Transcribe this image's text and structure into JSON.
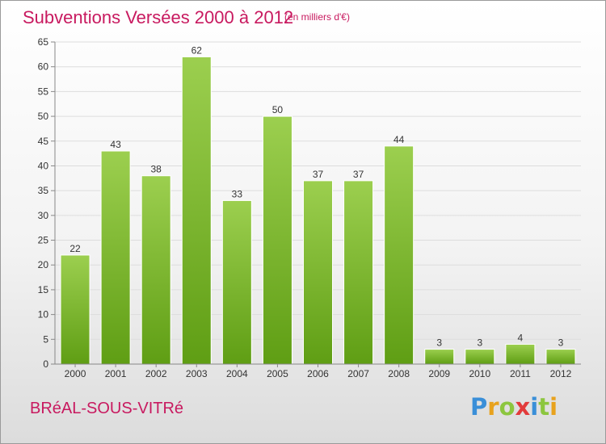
{
  "title": "Subventions Versées 2000 à 2012",
  "subtitle": "(en milliers d'€)",
  "town": "BRéAL-SOUS-VITRé",
  "brand": {
    "letters": [
      {
        "char": "P",
        "color": "#3a8fd8"
      },
      {
        "char": "r",
        "color": "#e8a21d"
      },
      {
        "char": "o",
        "color": "#8cc63f"
      },
      {
        "char": "x",
        "color": "#e23b3b"
      },
      {
        "char": "i",
        "color": "#3a8fd8"
      },
      {
        "char": "t",
        "color": "#8cc63f"
      },
      {
        "char": "i",
        "color": "#e8a21d"
      }
    ]
  },
  "colors": {
    "accent": "#c8195f",
    "bar_top": "#9ccf4f",
    "bar_bottom": "#5f9e14",
    "grid": "#dddddd",
    "axis": "#888888"
  },
  "chart_data": {
    "type": "bar",
    "categories": [
      "2000",
      "2001",
      "2002",
      "2003",
      "2004",
      "2005",
      "2006",
      "2007",
      "2008",
      "2009",
      "2010",
      "2011",
      "2012"
    ],
    "values": [
      22,
      43,
      38,
      62,
      33,
      50,
      37,
      37,
      44,
      3,
      3,
      4,
      3
    ],
    "ylim": [
      0,
      65
    ],
    "yticks": [
      0,
      5,
      10,
      15,
      20,
      25,
      30,
      35,
      40,
      45,
      50,
      55,
      60,
      65
    ],
    "grid": true,
    "data_labels": true
  }
}
